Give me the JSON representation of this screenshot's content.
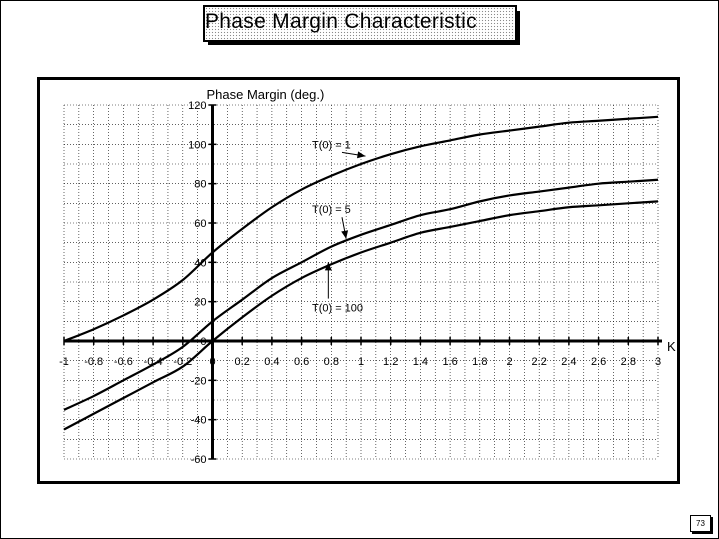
{
  "title": "Phase  Margin  Characteristic",
  "page_number": "73",
  "chart_data": {
    "type": "line",
    "title": "Phase  Margin  Characteristic",
    "ylabel": "Phase Margin (deg.)",
    "xlabel": "K",
    "xlim": [
      -1,
      3
    ],
    "ylim": [
      -60,
      120
    ],
    "grid": true,
    "x_ticks": [
      -1,
      -0.8,
      -0.6,
      -0.4,
      -0.2,
      0,
      0.2,
      0.4,
      0.6,
      0.8,
      1,
      1.2,
      1.4,
      1.6,
      1.8,
      2,
      2.2,
      2.4,
      2.6,
      2.8,
      3
    ],
    "x_tick_labels": [
      "-1",
      "-0.8",
      "-0.6",
      "-0.4",
      "-0.2",
      "0",
      "0.2",
      "0.4",
      "0.6",
      "0.8",
      "1",
      "1.2",
      "1.4",
      "1.6",
      "1.8",
      "2",
      "2.2",
      "2.4",
      "2.6",
      "2.8",
      "3"
    ],
    "y_ticks": [
      -60,
      -40,
      -20,
      0,
      20,
      40,
      60,
      80,
      100,
      120
    ],
    "y_tick_labels": [
      "-60",
      "-40",
      "-20",
      "0",
      "20",
      "40",
      "60",
      "80",
      "100",
      "120"
    ],
    "series": [
      {
        "name": "T(0)  =  1",
        "x": [
          -1,
          -0.8,
          -0.6,
          -0.4,
          -0.2,
          0,
          0.2,
          0.4,
          0.6,
          0.8,
          1,
          1.2,
          1.4,
          1.6,
          1.8,
          2,
          2.2,
          2.4,
          2.6,
          2.8,
          3
        ],
        "y": [
          0,
          6,
          13,
          21,
          31,
          45,
          57,
          68,
          77,
          84,
          90,
          95,
          99,
          102,
          105,
          107,
          109,
          111,
          112,
          113,
          114
        ]
      },
      {
        "name": "T(0)  =  5",
        "x": [
          -1,
          -0.8,
          -0.6,
          -0.4,
          -0.2,
          0,
          0.2,
          0.4,
          0.6,
          0.8,
          1,
          1.2,
          1.4,
          1.6,
          1.8,
          2,
          2.2,
          2.4,
          2.6,
          2.8,
          3
        ],
        "y": [
          -35,
          -28,
          -20,
          -12,
          -3,
          10,
          21,
          32,
          40,
          48,
          54,
          59,
          64,
          67,
          71,
          74,
          76,
          78,
          80,
          81,
          82
        ]
      },
      {
        "name": "T(0)  =  100",
        "x": [
          -1,
          -0.8,
          -0.6,
          -0.4,
          -0.2,
          0,
          0.2,
          0.4,
          0.6,
          0.8,
          1,
          1.2,
          1.4,
          1.6,
          1.8,
          2,
          2.2,
          2.4,
          2.6,
          2.8,
          3
        ],
        "y": [
          -45,
          -37,
          -29,
          -21,
          -13,
          0,
          12,
          23,
          32,
          39,
          45,
          50,
          55,
          58,
          61,
          64,
          66,
          68,
          69,
          70,
          71
        ]
      }
    ],
    "annotations": [
      {
        "text": "T(0)  =  1",
        "x": 0.67,
        "y": 100,
        "arrow_to": [
          1.03,
          94
        ]
      },
      {
        "text": "T(0)  =  5",
        "x": 0.67,
        "y": 67,
        "arrow_to": [
          0.9,
          52
        ]
      },
      {
        "text": "T(0)  =  100",
        "x": 0.67,
        "y": 17,
        "arrow_to": [
          0.78,
          40
        ]
      }
    ]
  }
}
